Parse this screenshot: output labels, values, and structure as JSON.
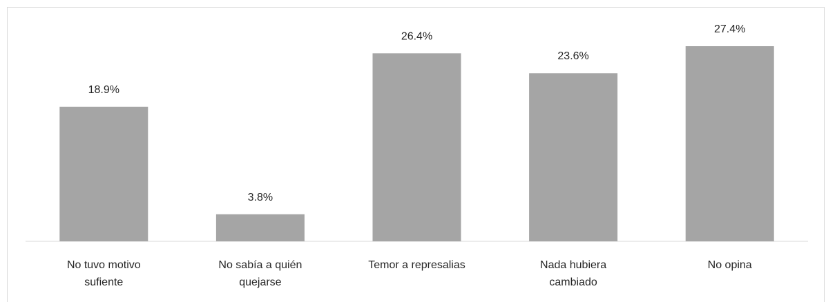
{
  "chart_data": {
    "type": "bar",
    "categories": [
      "No tuvo motivo sufiente",
      "No sabía a quién quejarse",
      "Temor a represalias",
      "Nada hubiera cambiado",
      "No opina"
    ],
    "values": [
      18.9,
      3.8,
      26.4,
      23.6,
      27.4
    ],
    "value_labels": [
      "18.9%",
      "3.8%",
      "26.4%",
      "23.6%",
      "27.4%"
    ],
    "color": "#a5a5a5"
  }
}
